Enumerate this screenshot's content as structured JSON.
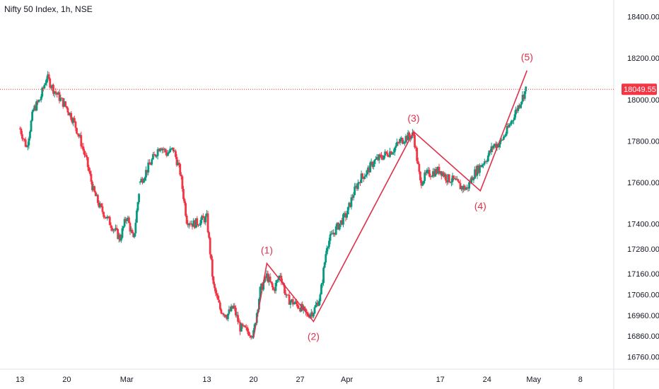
{
  "header": {
    "title": "Nifty 50 Index, 1h, NSE"
  },
  "colors": {
    "up": "#089981",
    "down": "#f23645",
    "wave": "#e0304a",
    "axis_text": "#131722",
    "tag_bg": "#f23645"
  },
  "chart_data": {
    "type": "candlestick",
    "title": "Nifty 50 Index, 1h, NSE",
    "ylim": [
      16700,
      18480
    ],
    "y_ticks": [
      {
        "value": 18400,
        "label": "18400.00"
      },
      {
        "value": 18200,
        "label": "18200.00"
      },
      {
        "value": 18000,
        "label": "18000.00"
      },
      {
        "value": 17800,
        "label": "17800.00"
      },
      {
        "value": 17600,
        "label": "17600.00"
      },
      {
        "value": 17400,
        "label": "17400.00"
      },
      {
        "value": 17280,
        "label": "17280.00"
      },
      {
        "value": 17160,
        "label": "17160.00"
      },
      {
        "value": 17060,
        "label": "17060.00"
      },
      {
        "value": 16960,
        "label": "16960.00"
      },
      {
        "value": 16860,
        "label": "16860.00"
      },
      {
        "value": 16760,
        "label": "16760.00"
      }
    ],
    "x_ticks": [
      {
        "date": "2023-02-13",
        "label": "13"
      },
      {
        "date": "2023-02-20",
        "label": "20"
      },
      {
        "date": "2023-03-01",
        "label": "Mar"
      },
      {
        "date": "2023-03-13",
        "label": "13"
      },
      {
        "date": "2023-03-20",
        "label": "20"
      },
      {
        "date": "2023-03-27",
        "label": "27"
      },
      {
        "date": "2023-04-03",
        "label": "Apr"
      },
      {
        "date": "2023-04-17",
        "label": "17"
      },
      {
        "date": "2023-04-24",
        "label": "24"
      },
      {
        "date": "2023-05-01",
        "label": "May"
      },
      {
        "date": "2023-05-08",
        "label": "8"
      }
    ],
    "last_price": {
      "value": 18049.55,
      "label": "18049.55"
    },
    "price_path": [
      [
        "2023-02-13",
        17860
      ],
      [
        "2023-02-14",
        17770
      ],
      [
        "2023-02-15",
        17950
      ],
      [
        "2023-02-16",
        18000
      ],
      [
        "2023-02-17",
        18110
      ],
      [
        "2023-02-18",
        18050
      ],
      [
        "2023-02-20",
        17960
      ],
      [
        "2023-02-21",
        17900
      ],
      [
        "2023-02-22",
        17810
      ],
      [
        "2023-02-23",
        17700
      ],
      [
        "2023-02-24",
        17560
      ],
      [
        "2023-02-25",
        17480
      ],
      [
        "2023-02-27",
        17380
      ],
      [
        "2023-02-28",
        17330
      ],
      [
        "2023-03-01",
        17440
      ],
      [
        "2023-03-02",
        17320
      ],
      [
        "2023-03-03",
        17600
      ],
      [
        "2023-03-06",
        17780
      ],
      [
        "2023-03-07",
        17740
      ],
      [
        "2023-03-08",
        17760
      ],
      [
        "2023-03-09",
        17650
      ],
      [
        "2023-03-10",
        17420
      ],
      [
        "2023-03-11",
        17400
      ],
      [
        "2023-03-13",
        17430
      ],
      [
        "2023-03-14",
        17100
      ],
      [
        "2023-03-15",
        16990
      ],
      [
        "2023-03-16",
        16960
      ],
      [
        "2023-03-17",
        17000
      ],
      [
        "2023-03-18",
        16900
      ],
      [
        "2023-03-20",
        16870
      ],
      [
        "2023-03-21",
        17080
      ],
      [
        "2023-03-22",
        17150
      ],
      [
        "2023-03-23",
        17080
      ],
      [
        "2023-03-24",
        17160
      ],
      [
        "2023-03-25",
        17040
      ],
      [
        "2023-03-27",
        17000
      ],
      [
        "2023-03-28",
        16960
      ],
      [
        "2023-03-29",
        16980
      ],
      [
        "2023-03-30",
        17050
      ],
      [
        "2023-03-31",
        17300
      ],
      [
        "2023-04-01",
        17360
      ],
      [
        "2023-04-03",
        17450
      ],
      [
        "2023-04-04",
        17550
      ],
      [
        "2023-04-05",
        17620
      ],
      [
        "2023-04-06",
        17650
      ],
      [
        "2023-04-07",
        17700
      ],
      [
        "2023-04-08",
        17720
      ],
      [
        "2023-04-10",
        17760
      ],
      [
        "2023-04-11",
        17800
      ],
      [
        "2023-04-12",
        17820
      ],
      [
        "2023-04-13",
        17830
      ],
      [
        "2023-04-14",
        17600
      ],
      [
        "2023-04-15",
        17640
      ],
      [
        "2023-04-17",
        17660
      ],
      [
        "2023-04-18",
        17620
      ],
      [
        "2023-04-19",
        17610
      ],
      [
        "2023-04-20",
        17580
      ],
      [
        "2023-04-21",
        17570
      ],
      [
        "2023-04-22",
        17640
      ],
      [
        "2023-04-24",
        17720
      ],
      [
        "2023-04-25",
        17780
      ],
      [
        "2023-04-26",
        17790
      ],
      [
        "2023-04-27",
        17850
      ],
      [
        "2023-04-28",
        17920
      ],
      [
        "2023-04-29",
        17990
      ],
      [
        "2023-04-30",
        18060
      ]
    ],
    "wave_labels": [
      {
        "label": "(1)",
        "x": "2023-03-22",
        "y": 17210,
        "pos": "above"
      },
      {
        "label": "(2)",
        "x": "2023-03-29",
        "y": 16930,
        "pos": "below"
      },
      {
        "label": "(3)",
        "x": "2023-04-13",
        "y": 17845,
        "pos": "above"
      },
      {
        "label": "(4)",
        "x": "2023-04-23",
        "y": 17560,
        "pos": "below"
      },
      {
        "label": "(5)",
        "x": "2023-04-30",
        "y": 18140,
        "pos": "above"
      }
    ],
    "wave_line": [
      [
        "2023-03-20",
        16850
      ],
      [
        "2023-03-22",
        17210
      ],
      [
        "2023-03-29",
        16930
      ],
      [
        "2023-04-13",
        17845
      ],
      [
        "2023-04-23",
        17560
      ],
      [
        "2023-04-30",
        18140
      ]
    ]
  }
}
